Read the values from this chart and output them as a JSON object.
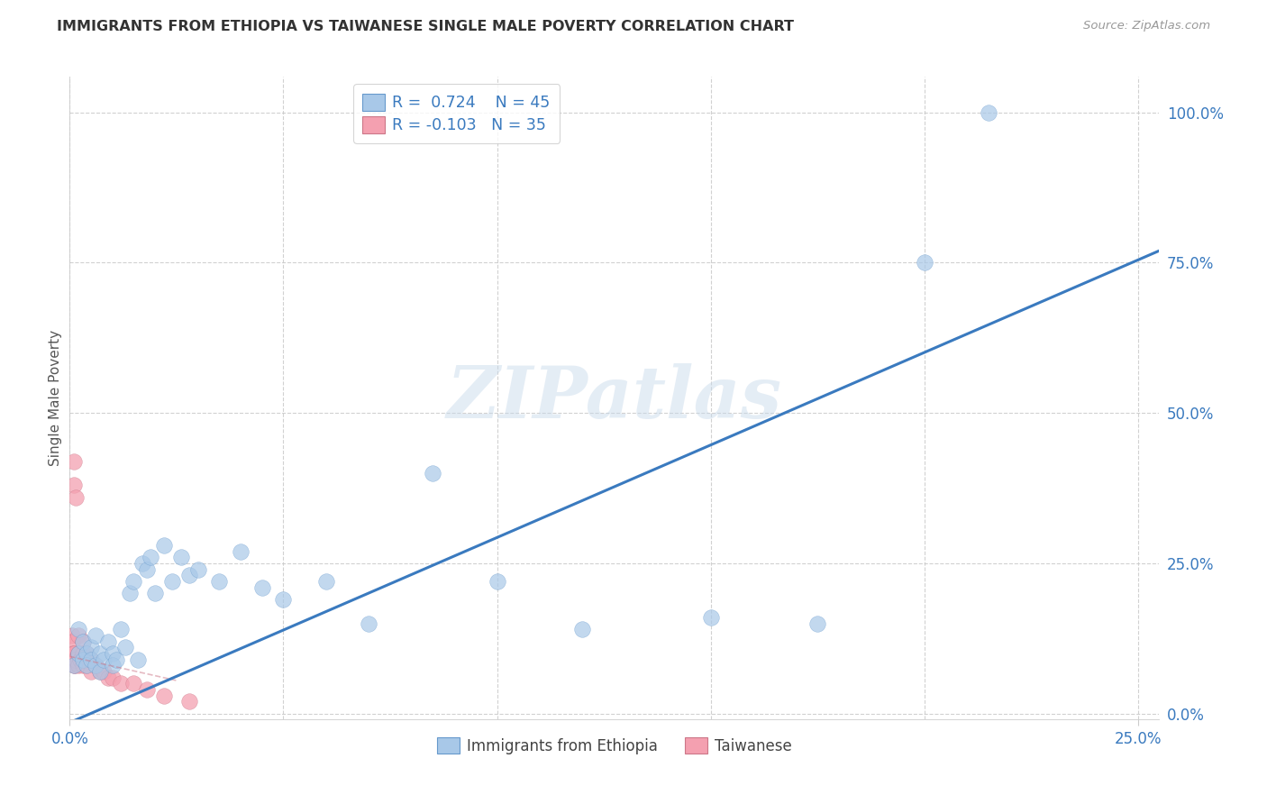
{
  "title": "IMMIGRANTS FROM ETHIOPIA VS TAIWANESE SINGLE MALE POVERTY CORRELATION CHART",
  "source": "Source: ZipAtlas.com",
  "ylabel": "Single Male Poverty",
  "xlim": [
    0.0,
    0.255
  ],
  "ylim": [
    -0.01,
    1.06
  ],
  "ytick_values": [
    0.0,
    0.25,
    0.5,
    0.75,
    1.0
  ],
  "ytick_labels": [
    "0.0%",
    "25.0%",
    "50.0%",
    "75.0%",
    "100.0%"
  ],
  "xtick_values": [
    0.0,
    0.05,
    0.1,
    0.15,
    0.2,
    0.25
  ],
  "xtick_show": [
    0.0,
    0.25
  ],
  "xtick_labels_show": [
    "0.0%",
    "25.0%"
  ],
  "blue_color": "#a8c8e8",
  "blue_edge_color": "#6699cc",
  "pink_color": "#f4a0b0",
  "pink_edge_color": "#cc7788",
  "line_color": "#3a7abf",
  "background_color": "#ffffff",
  "grid_color": "#cccccc",
  "title_color": "#333333",
  "source_color": "#999999",
  "tick_color": "#3a7abf",
  "watermark": "ZIPatlas",
  "r_blue": "0.724",
  "n_blue": "45",
  "r_pink": "-0.103",
  "n_pink": "35",
  "blue_line_x0": 0.0,
  "blue_line_x1": 0.255,
  "blue_line_y0": -0.015,
  "blue_line_y1": 0.77,
  "pink_line_x0": 0.0,
  "pink_line_x1": 0.025,
  "pink_line_y0": 0.095,
  "pink_line_y1": 0.055,
  "blue_x": [
    0.001,
    0.002,
    0.002,
    0.003,
    0.003,
    0.004,
    0.004,
    0.005,
    0.005,
    0.006,
    0.006,
    0.007,
    0.007,
    0.008,
    0.009,
    0.01,
    0.01,
    0.011,
    0.012,
    0.013,
    0.014,
    0.015,
    0.016,
    0.017,
    0.018,
    0.019,
    0.02,
    0.022,
    0.024,
    0.026,
    0.028,
    0.03,
    0.035,
    0.04,
    0.045,
    0.05,
    0.06,
    0.07,
    0.085,
    0.1,
    0.12,
    0.15,
    0.175,
    0.2,
    0.215
  ],
  "blue_y": [
    0.08,
    0.1,
    0.14,
    0.09,
    0.12,
    0.1,
    0.08,
    0.11,
    0.09,
    0.13,
    0.08,
    0.1,
    0.07,
    0.09,
    0.12,
    0.1,
    0.08,
    0.09,
    0.14,
    0.11,
    0.2,
    0.22,
    0.09,
    0.25,
    0.24,
    0.26,
    0.2,
    0.28,
    0.22,
    0.26,
    0.23,
    0.24,
    0.22,
    0.27,
    0.21,
    0.19,
    0.22,
    0.15,
    0.4,
    0.22,
    0.14,
    0.16,
    0.15,
    0.75,
    1.0
  ],
  "pink_x": [
    0.0005,
    0.0005,
    0.0006,
    0.0007,
    0.0008,
    0.0009,
    0.001,
    0.001,
    0.001,
    0.0012,
    0.0013,
    0.0015,
    0.0015,
    0.002,
    0.002,
    0.002,
    0.0025,
    0.003,
    0.003,
    0.003,
    0.0035,
    0.004,
    0.004,
    0.005,
    0.005,
    0.006,
    0.007,
    0.008,
    0.009,
    0.01,
    0.012,
    0.015,
    0.018,
    0.022,
    0.028
  ],
  "pink_y": [
    0.13,
    0.1,
    0.12,
    0.1,
    0.09,
    0.08,
    0.42,
    0.38,
    0.1,
    0.09,
    0.08,
    0.36,
    0.09,
    0.13,
    0.1,
    0.08,
    0.09,
    0.12,
    0.1,
    0.08,
    0.09,
    0.1,
    0.08,
    0.09,
    0.07,
    0.08,
    0.07,
    0.07,
    0.06,
    0.06,
    0.05,
    0.05,
    0.04,
    0.03,
    0.02
  ]
}
